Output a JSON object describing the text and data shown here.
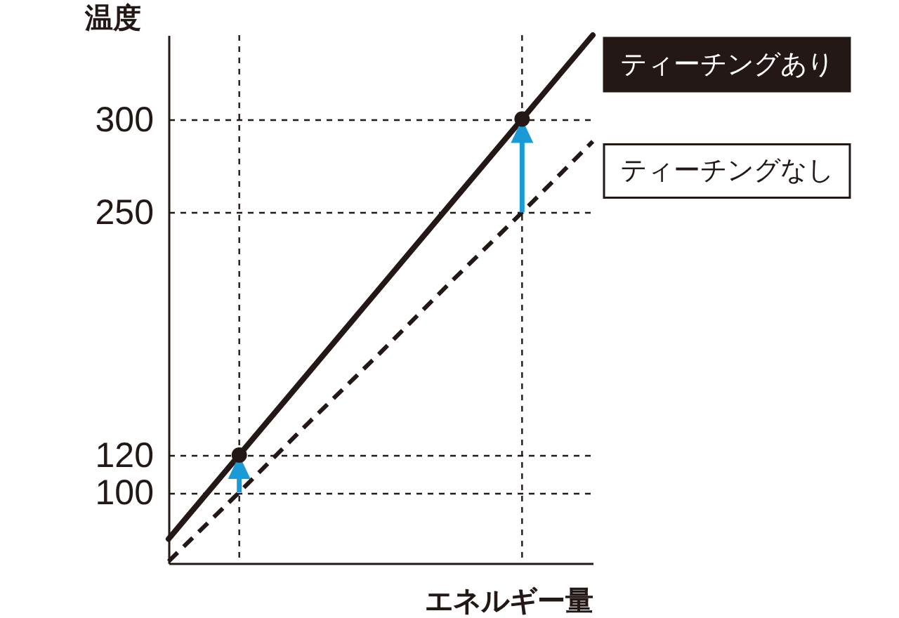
{
  "chart_data": {
    "type": "line",
    "xlabel": "エネルギー量",
    "ylabel": "温度",
    "categories": [
      null,
      null,
      null,
      null,
      null,
      null,
      null
    ],
    "ylim": [
      62,
      345
    ],
    "yticks": [
      100,
      120,
      250,
      300
    ],
    "tick_labels": "y",
    "grid": true,
    "series": [
      {
        "name": "ティーチングあり",
        "color": "#231815",
        "line_style": "solid",
        "values": [
          75,
          120,
          165,
          210,
          255,
          300,
          345
        ]
      },
      {
        "name": "ティーチングなし",
        "color": "#231815",
        "line_style": "dashed",
        "values": [
          63,
          100,
          138,
          175,
          213,
          250,
          288
        ]
      },
      {
        "type": "scatter",
        "color": "#231815",
        "marker": "circle",
        "values": [
          null,
          120,
          null,
          null,
          null,
          300,
          null
        ]
      }
    ]
  }
}
